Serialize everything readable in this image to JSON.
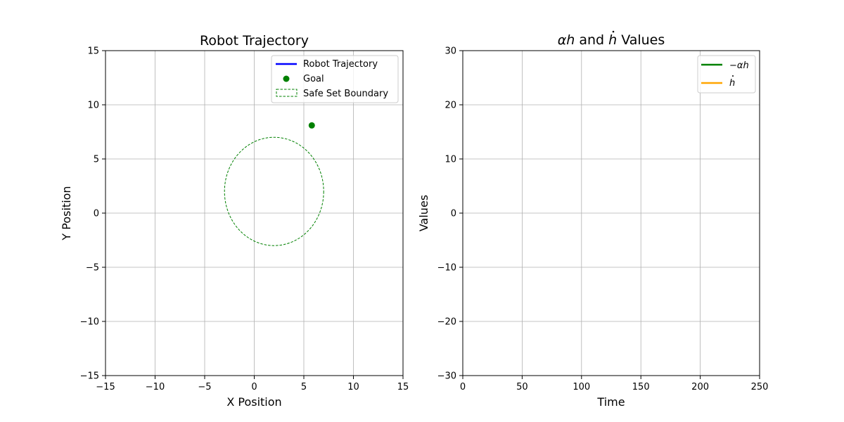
{
  "chart_data": [
    {
      "type": "line",
      "title": "Robot Trajectory",
      "xlabel": "X Position",
      "ylabel": "Y Position",
      "xlim": [
        -15,
        15
      ],
      "ylim": [
        -15,
        15
      ],
      "xticks": [
        -15,
        -10,
        -5,
        0,
        5,
        10,
        15
      ],
      "yticks": [
        -15,
        -10,
        -5,
        0,
        5,
        10,
        15
      ],
      "tick_labels_x": [
        "−15",
        "−10",
        "−5",
        "0",
        "5",
        "10",
        "15"
      ],
      "tick_labels_y": [
        "−15",
        "−10",
        "−5",
        "0",
        "5",
        "10",
        "15"
      ],
      "grid": true,
      "legend_position": "top-right",
      "series": [
        {
          "name": "Robot Trajectory",
          "color": "#0000ff",
          "x": [],
          "y": []
        },
        {
          "name": "Goal",
          "color": "#008000",
          "marker": "circle",
          "x": [
            5.8
          ],
          "y": [
            8.1
          ]
        },
        {
          "name": "Safe Set Boundary",
          "color": "#008000",
          "shape": "ellipse",
          "center": [
            2,
            2
          ],
          "radius_x": 5,
          "radius_y": 5
        }
      ]
    },
    {
      "type": "line",
      "title_parts": [
        "α",
        "h",
        " and ",
        "h",
        " Values"
      ],
      "xlabel": "Time",
      "ylabel": "Values",
      "xlim": [
        0,
        250
      ],
      "ylim": [
        -30,
        30
      ],
      "xticks": [
        0,
        50,
        100,
        150,
        200,
        250
      ],
      "yticks": [
        -30,
        -20,
        -10,
        0,
        10,
        20,
        30
      ],
      "tick_labels_x": [
        "0",
        "50",
        "100",
        "150",
        "200",
        "250"
      ],
      "tick_labels_y": [
        "−30",
        "−20",
        "−10",
        "0",
        "10",
        "20",
        "30"
      ],
      "grid": true,
      "legend_position": "top-right",
      "series": [
        {
          "name_parts": [
            "−",
            "α",
            "h"
          ],
          "color": "#008000",
          "x": [],
          "y": []
        },
        {
          "name_parts": [
            "h"
          ],
          "color": "#ffa500",
          "x": [],
          "y": []
        }
      ]
    }
  ]
}
